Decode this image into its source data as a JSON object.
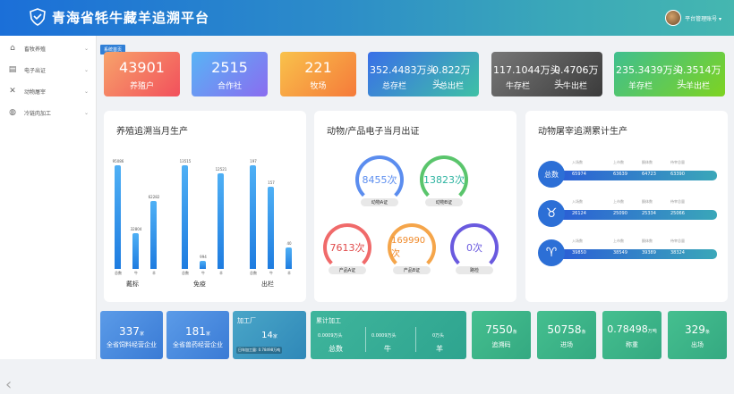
{
  "app": {
    "title": "青海省牦牛藏羊追溯平台",
    "user": "平台管理账号 ▾"
  },
  "sidebar": {
    "items": [
      {
        "label": "畜牧养殖",
        "icon": "livestock-icon"
      },
      {
        "label": "电子出证",
        "icon": "certificate-icon"
      },
      {
        "label": "动物屠宰",
        "icon": "slaughter-icon"
      },
      {
        "label": "冷链肉加工",
        "icon": "meat-processing-icon"
      }
    ]
  },
  "tab": "系统首页",
  "stats": [
    {
      "value": "43901",
      "label": "养殖户",
      "color": "#f0635a"
    },
    {
      "value": "2515",
      "label": "合作社",
      "color": "#6b8bf0"
    },
    {
      "value": "221",
      "label": "牧场",
      "color": "#f48a45"
    }
  ],
  "pairs": [
    {
      "v1": "352.4483万头",
      "l1": "总存栏",
      "v2": "0.822万头",
      "l2": "总出栏"
    },
    {
      "v1": "117.1044万头",
      "l1": "牛存栏",
      "v2": "0.4706万头",
      "l2": "牛出栏"
    },
    {
      "v1": "235.3439万头",
      "l1": "羊存栏",
      "v2": "0.3514万头",
      "l2": "羊出栏"
    }
  ],
  "panels": {
    "p1": "养殖追溯当月生产",
    "p2": "动物/产品电子当月出证",
    "p3": "动物屠宰追溯累计生产"
  },
  "chart_data": {
    "type": "bar",
    "title": "养殖追溯当月生产",
    "groups": [
      {
        "name": "戴标",
        "categories": [
          "总数",
          "牛",
          "羊"
        ],
        "values": [
          95086,
          32804,
          62282
        ]
      },
      {
        "name": "免疫",
        "categories": [
          "总数",
          "牛",
          "羊"
        ],
        "values": [
          13515,
          994,
          12521
        ]
      },
      {
        "name": "出栏",
        "categories": [
          "总数",
          "牛",
          "羊"
        ],
        "values": [
          197,
          157,
          40
        ]
      }
    ]
  },
  "certs": [
    {
      "value": "8455次",
      "label": "动物A证"
    },
    {
      "value": "13823次",
      "label": "动物B证"
    },
    {
      "value": "7613次",
      "label": "产品A证"
    },
    {
      "value": "169990次",
      "label": "产品B证"
    },
    {
      "value": "0次",
      "label": "路检"
    }
  ],
  "slaughter": {
    "headers": [
      "入场数",
      "上市数",
      "酮体数",
      "待宰总量"
    ],
    "rows": [
      {
        "name": "总数",
        "values": [
          "65974",
          "63639",
          "64723",
          "63390"
        ]
      },
      {
        "name": "",
        "icon": "yak-icon",
        "values": [
          "26124",
          "25090",
          "25334",
          "25066"
        ]
      },
      {
        "name": "",
        "icon": "sheep-icon",
        "values": [
          "39850",
          "38549",
          "39389",
          "38324"
        ]
      }
    ]
  },
  "bottom": [
    {
      "value": "337",
      "unit": "家",
      "label": "全省饲料经营企业"
    },
    {
      "value": "181",
      "unit": "家",
      "label": "全省兽药经营企业"
    },
    {
      "title": "加工厂",
      "value": "14",
      "unit": "家",
      "sub": "日年加工量: 0.78498万吨"
    },
    {
      "title": "累计加工",
      "items": [
        {
          "v": "0.0009万头",
          "l": "总数"
        },
        {
          "v": "0.0009万头",
          "l": "牛"
        },
        {
          "v": "0万头",
          "l": "羊"
        }
      ]
    },
    {
      "value": "7550",
      "unit": "条",
      "label": "追溯码"
    },
    {
      "value": "50758",
      "unit": "条",
      "label": "进场"
    },
    {
      "value": "0.78498",
      "unit": "万吨",
      "label": "称重"
    },
    {
      "value": "329",
      "unit": "条",
      "label": "出场"
    }
  ]
}
